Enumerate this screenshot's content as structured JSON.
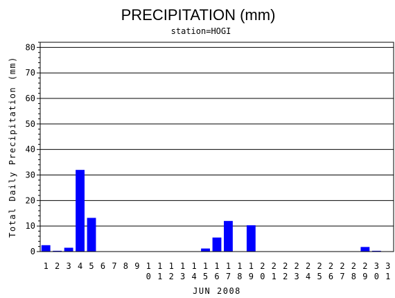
{
  "chart_data": {
    "type": "bar",
    "title": "PRECIPITATION (mm)",
    "subtitle": "station=HOGI",
    "xlabel": "JUN 2008",
    "ylabel": "Total Daily Precipitation (mm)",
    "ylim": [
      0,
      82
    ],
    "yticks": [
      0,
      10,
      20,
      30,
      40,
      50,
      60,
      70,
      80
    ],
    "grid": "horizontal",
    "bar_color": "#0000ff",
    "categories": [
      "1",
      "2",
      "3",
      "4",
      "5",
      "6",
      "7",
      "8",
      "9",
      "10",
      "11",
      "12",
      "13",
      "14",
      "15",
      "16",
      "17",
      "18",
      "19",
      "20",
      "21",
      "22",
      "23",
      "24",
      "25",
      "26",
      "27",
      "28",
      "29",
      "30",
      "31"
    ],
    "values": [
      2.5,
      0.3,
      1.5,
      32.0,
      13.2,
      0,
      0,
      0,
      0,
      0,
      0,
      0,
      0,
      0,
      1.2,
      5.5,
      12.0,
      0,
      10.3,
      0,
      0,
      0,
      0,
      0,
      0,
      0,
      0,
      0,
      1.8,
      0.3,
      0
    ]
  }
}
